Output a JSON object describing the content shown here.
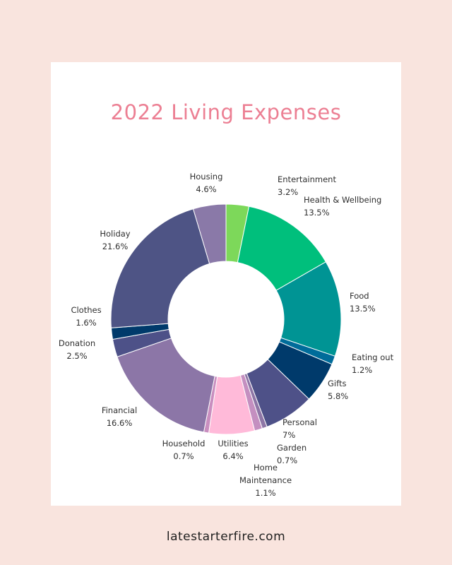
{
  "chart_data": {
    "type": "pie",
    "title": "2022 Living Expenses",
    "donut": true,
    "slices": [
      {
        "label": "Entertainment",
        "value": 3.2,
        "value_label": "3.2%",
        "color": "#7dd85a"
      },
      {
        "label": "Health & Wellbeing",
        "value": 13.5,
        "value_label": "13.5%",
        "color": "#00bf7c"
      },
      {
        "label": "Food",
        "value": 13.5,
        "value_label": "13.5%",
        "color": "#009494"
      },
      {
        "label": "Eating out",
        "value": 1.2,
        "value_label": "1.2%",
        "color": "#006c9a"
      },
      {
        "label": "Gifts",
        "value": 5.8,
        "value_label": "5.8%",
        "color": "#003a6b"
      },
      {
        "label": "Personal",
        "value": 7,
        "value_label": "7%",
        "color": "#4e5188"
      },
      {
        "label": "Garden",
        "value": 0.7,
        "value_label": "0.7%",
        "color": "#8e76a6"
      },
      {
        "label": "Home Maintenance",
        "value": 1.1,
        "value_label": "1.1%",
        "color": "#c48fc0"
      },
      {
        "label": "Utilities",
        "value": 6.4,
        "value_label": "6.4%",
        "color": "#ffbad9"
      },
      {
        "label": "Household",
        "value": 0.7,
        "value_label": "0.7%",
        "color": "#c98ebf"
      },
      {
        "label": "Financial",
        "value": 16.6,
        "value_label": "16.6%",
        "color": "#8c76a7"
      },
      {
        "label": "Donation",
        "value": 2.5,
        "value_label": "2.5%",
        "color": "#4d5188"
      },
      {
        "label": "Clothes",
        "value": 1.6,
        "value_label": "1.6%",
        "color": "#003a6b"
      },
      {
        "label": "Holiday",
        "value": 21.6,
        "value_label": "21.6%",
        "color": "#4e5485"
      },
      {
        "label": "Housing",
        "value": 4.6,
        "value_label": "4.6%",
        "color": "#8a79a8"
      }
    ]
  },
  "footer": {
    "site": "latestarterfire.com"
  }
}
